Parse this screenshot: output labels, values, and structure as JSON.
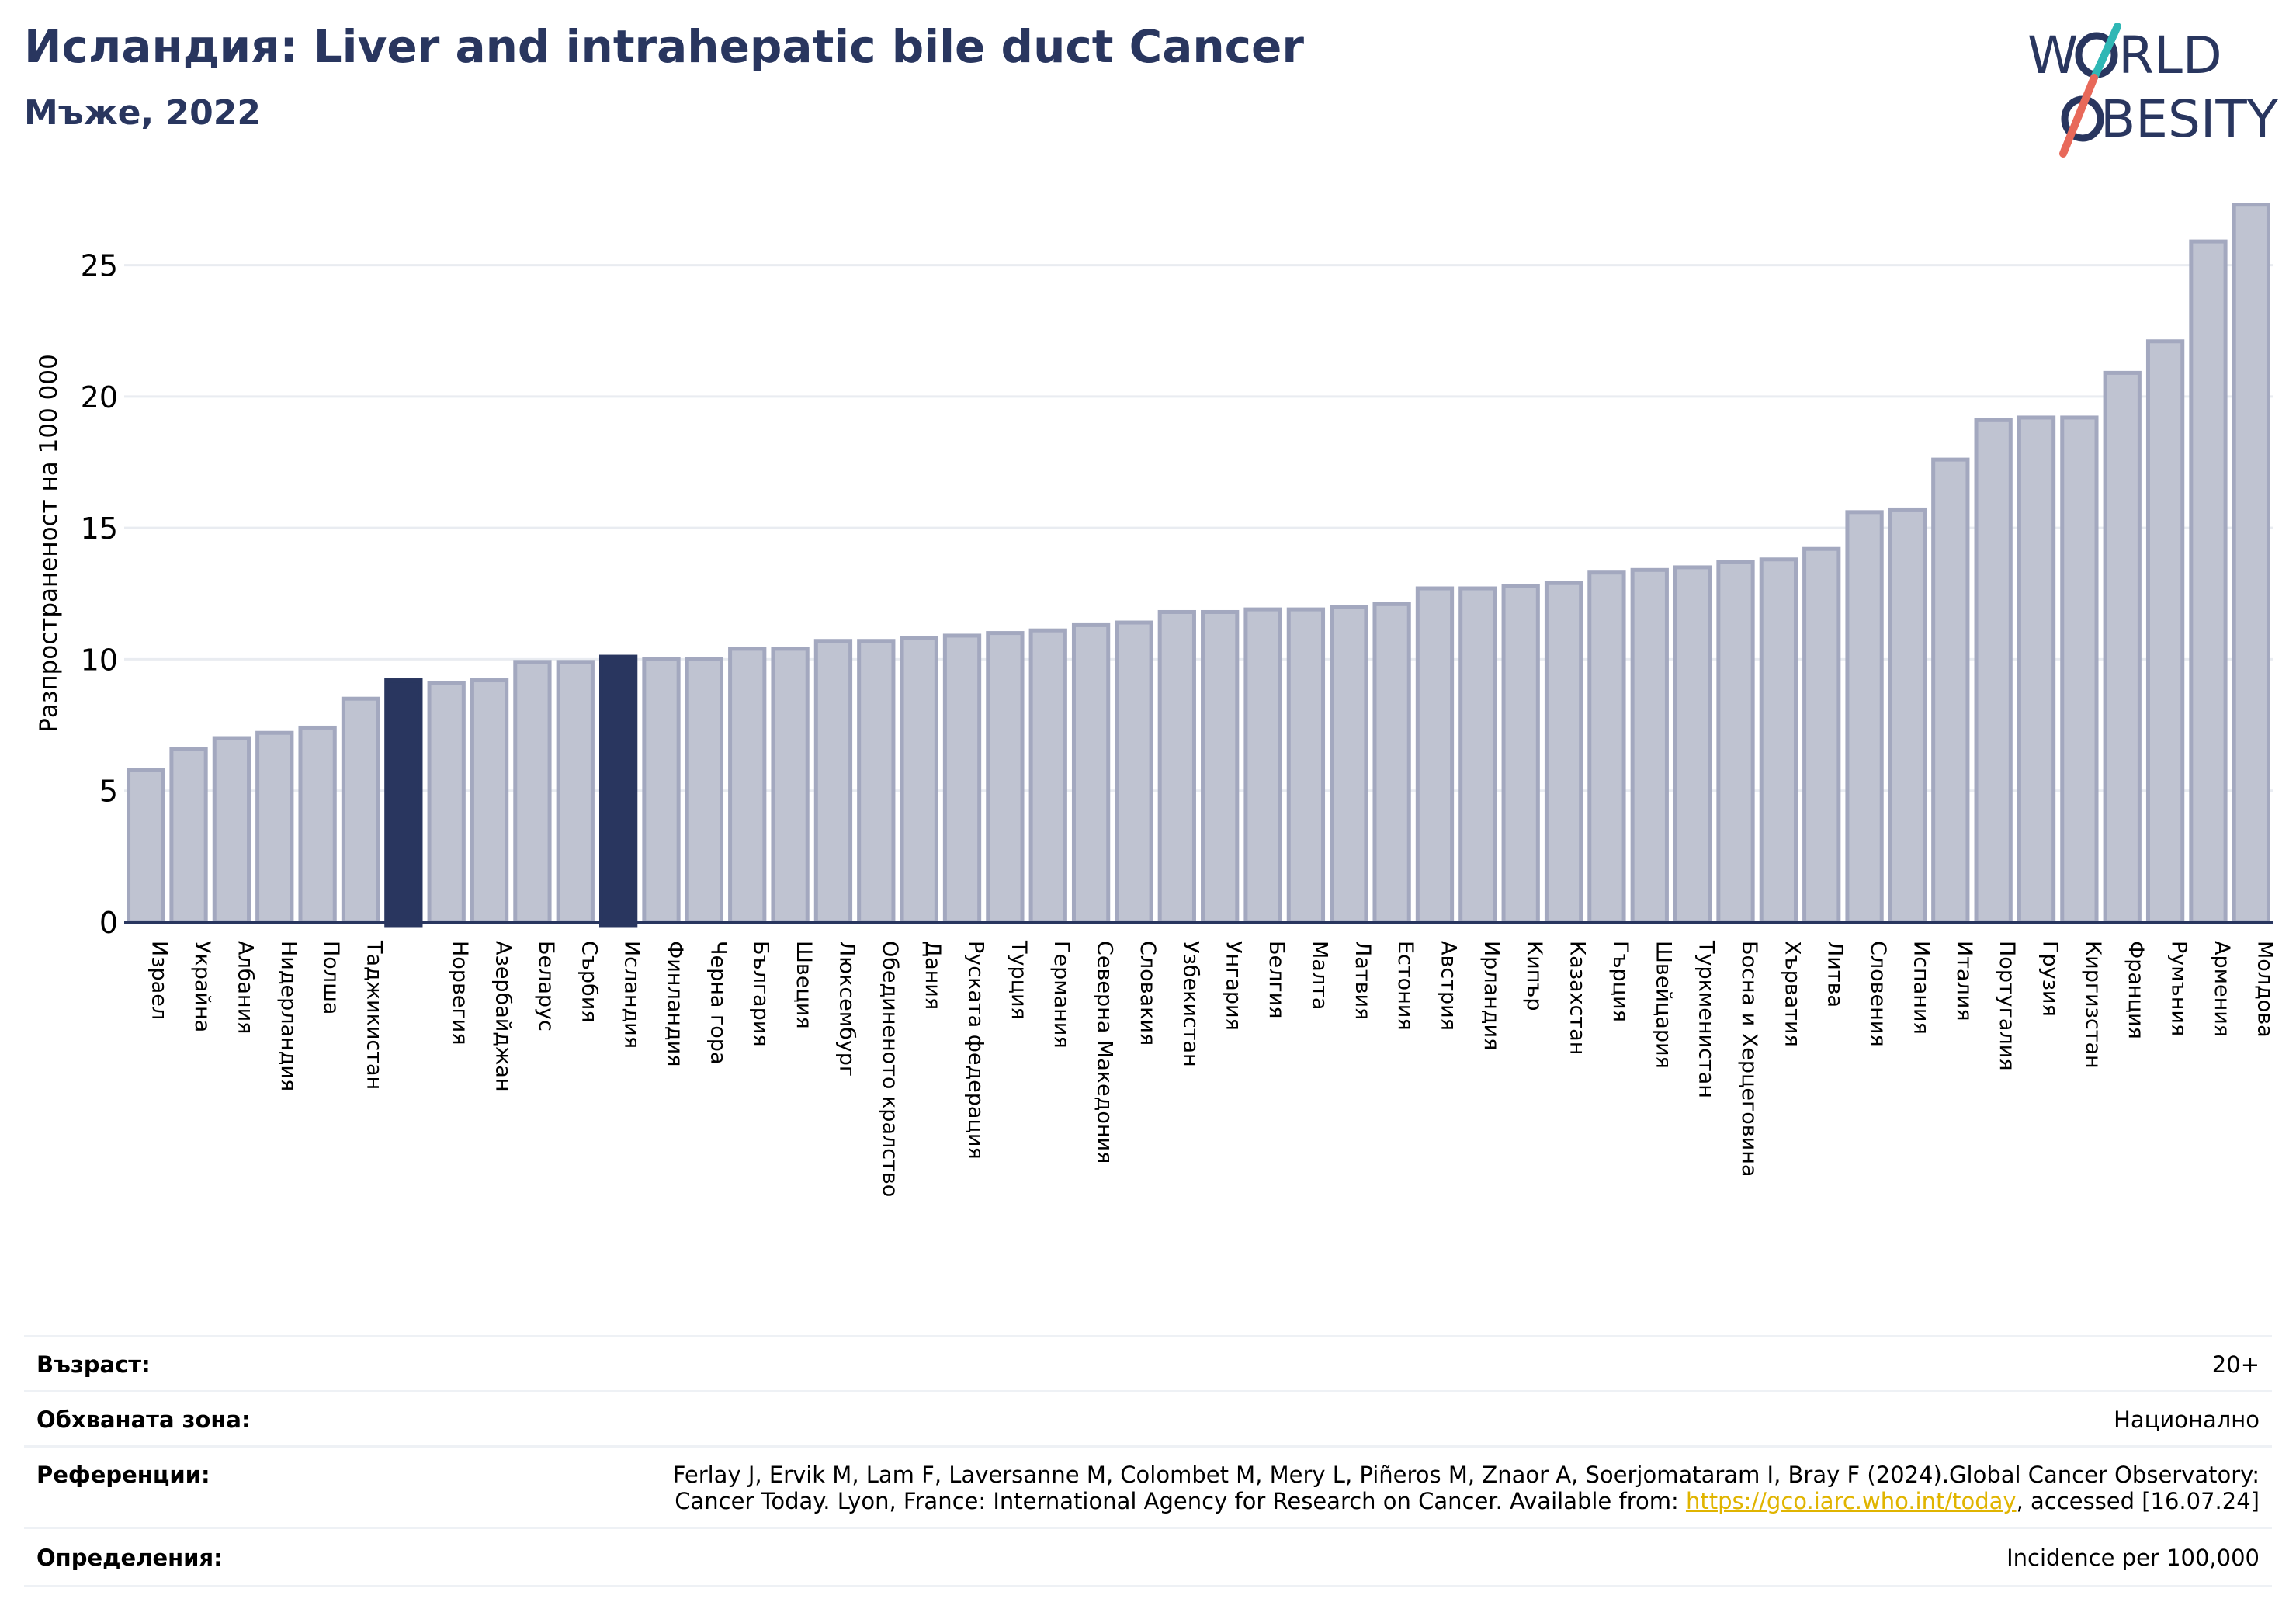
{
  "title": "Исландия: Liver and intrahepatic bile duct Cancer",
  "subtitle": "Мъже, 2022",
  "logo": {
    "line1": "W",
    "line1b": "RLD",
    "line2": "BESITY",
    "colors": {
      "text": "#29365f",
      "slash_top": "#2fb7b5",
      "slash_bottom": "#e8695a"
    }
  },
  "chart_data": {
    "type": "bar",
    "ylabel": "Разпространеност на 100 000",
    "xlabel": "",
    "ylim": [
      0,
      28
    ],
    "yticks": [
      0,
      5,
      10,
      15,
      20,
      25
    ],
    "grid": true,
    "colors": {
      "bar": "#bfc3d1",
      "bar_edge": "#a3a8bf",
      "highlight": "#29365f",
      "axis": "#29365f"
    },
    "categories": [
      "Израел",
      "Украйна",
      "Албания",
      "Нидерландия",
      "Полша",
      "Таджикистан",
      "",
      "Норвегия",
      "Азербайджан",
      "Беларус",
      "Сърбия",
      "Исландия",
      "Финландия",
      "Черна гора",
      "България",
      "Швеция",
      "Люксембург",
      "Обединеното кралство",
      "Дания",
      "Руската федерация",
      "Турция",
      "Германия",
      "Северна Македония",
      "Словакия",
      "Узбекистан",
      "Унгария",
      "Белгия",
      "Малта",
      "Латвия",
      "Естония",
      "Австрия",
      "Ирландия",
      "Кипър",
      "Казахстан",
      "Гърция",
      "Швейцария",
      "Туркменистан",
      "Босна и Херцеговина",
      "Хърватия",
      "Литва",
      "Словения",
      "Испания",
      "Италия",
      "Португалия",
      "Грузия",
      "Киргизстан",
      "Франция",
      "Румъния",
      "Армения",
      "Молдова"
    ],
    "values": [
      5.8,
      6.6,
      7.0,
      7.2,
      7.4,
      8.5,
      9.2,
      9.1,
      9.2,
      9.9,
      9.9,
      10.1,
      10.0,
      10.0,
      10.4,
      10.4,
      10.7,
      10.7,
      10.8,
      10.9,
      11.0,
      11.1,
      11.3,
      11.4,
      11.8,
      11.8,
      11.9,
      11.9,
      12.0,
      12.1,
      12.7,
      12.7,
      12.8,
      12.9,
      13.3,
      13.4,
      13.5,
      13.7,
      13.8,
      14.2,
      15.6,
      15.7,
      17.6,
      19.1,
      19.2,
      19.2,
      20.9,
      22.1,
      25.9,
      27.3
    ],
    "highlight": [
      6,
      11
    ]
  },
  "info": {
    "age_label": "Възраст:",
    "age_value": "20+",
    "area_label": "Обхваната зона:",
    "area_value": "Национално",
    "ref_label": "Референции:",
    "ref_line1": "Ferlay J, Ervik M, Lam F, Laversanne M, Colombet M, Mery L, Piñeros M, Znaor A, Soerjomataram I, Bray F (2024).Global Cancer Observatory:",
    "ref_line2_pre": "Cancer Today. Lyon, France: International Agency for Research on Cancer. Available from: ",
    "ref_link": "https://gco.iarc.who.int/today",
    "ref_line2_post": ", accessed [16.07.24]",
    "def_label": "Определения:",
    "def_value": "Incidence per 100,000"
  }
}
